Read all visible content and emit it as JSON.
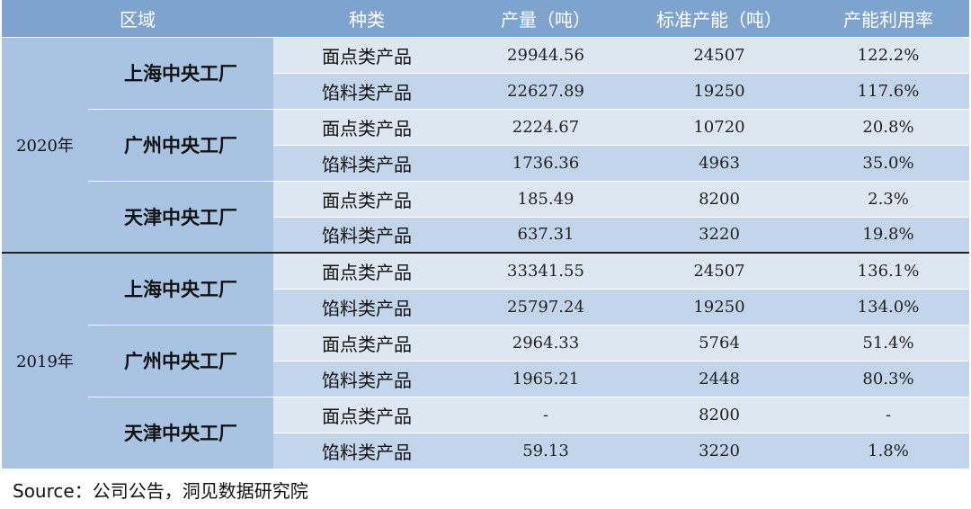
{
  "header": [
    "区域",
    "种类",
    "产量（吨）",
    "标准产能（吨）",
    "产能利用率"
  ],
  "years": [
    {
      "label": "2020年",
      "factories": [
        {
          "name": "上海中央工厂",
          "rows": [
            {
              "category": "面点类产品",
              "output": "29944.56",
              "capacity": "24507",
              "utilization": "122.2%"
            },
            {
              "category": "馅料类产品",
              "output": "22627.89",
              "capacity": "19250",
              "utilization": "117.6%"
            }
          ]
        },
        {
          "name": "广州中央工厂",
          "rows": [
            {
              "category": "面点类产品",
              "output": "2224.67",
              "capacity": "10720",
              "utilization": "20.8%"
            },
            {
              "category": "馅料类产品",
              "output": "1736.36",
              "capacity": "4963",
              "utilization": "35.0%"
            }
          ]
        },
        {
          "name": "天津中央工厂",
          "rows": [
            {
              "category": "面点类产品",
              "output": "185.49",
              "capacity": "8200",
              "utilization": "2.3%"
            },
            {
              "category": "馅料类产品",
              "output": "637.31",
              "capacity": "3220",
              "utilization": "19.8%"
            }
          ]
        }
      ]
    },
    {
      "label": "2019年",
      "factories": [
        {
          "name": "上海中央工厂",
          "rows": [
            {
              "category": "面点类产品",
              "output": "33341.55",
              "capacity": "24507",
              "utilization": "136.1%"
            },
            {
              "category": "馅料类产品",
              "output": "25797.24",
              "capacity": "19250",
              "utilization": "134.0%"
            }
          ]
        },
        {
          "name": "广州中央工厂",
          "rows": [
            {
              "category": "面点类产品",
              "output": "2964.33",
              "capacity": "5764",
              "utilization": "51.4%"
            },
            {
              "category": "馅料类产品",
              "output": "1965.21",
              "capacity": "2448",
              "utilization": "80.3%"
            }
          ]
        },
        {
          "name": "天津中央工厂",
          "rows": [
            {
              "category": "面点类产品",
              "output": "-",
              "capacity": "8200",
              "utilization": "-"
            },
            {
              "category": "馅料类产品",
              "output": "59.13",
              "capacity": "3220",
              "utilization": "1.8%"
            }
          ]
        }
      ]
    }
  ],
  "source": "Source：公司公告，洞见数据研究院"
}
